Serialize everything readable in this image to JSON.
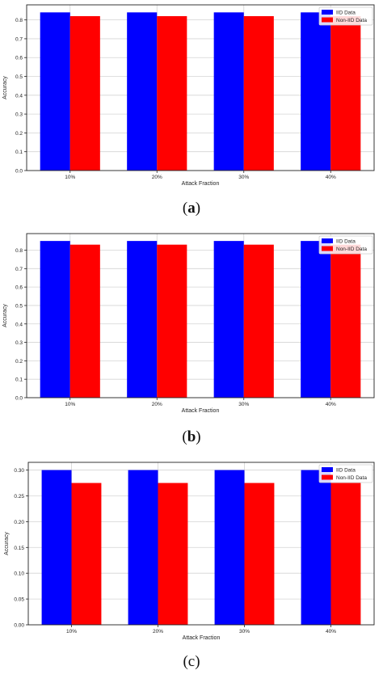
{
  "chart_data": [
    {
      "type": "bar",
      "panel_label": "a",
      "categories": [
        "10%",
        "20%",
        "30%",
        "40%"
      ],
      "series": [
        {
          "name": "IID Data",
          "color": "#0000ff",
          "values": [
            0.84,
            0.84,
            0.84,
            0.84
          ]
        },
        {
          "name": "Non-IID Data",
          "color": "#ff0000",
          "values": [
            0.82,
            0.82,
            0.82,
            0.82
          ]
        }
      ],
      "xlabel": "Attack Fraction",
      "ylabel": "Accuracy",
      "ylim": [
        0,
        0.88
      ],
      "yticks": [
        "0.0",
        "0.1",
        "0.2",
        "0.3",
        "0.4",
        "0.5",
        "0.6",
        "0.7",
        "0.8"
      ],
      "ytick_values": [
        0,
        0.1,
        0.2,
        0.3,
        0.4,
        0.5,
        0.6,
        0.7,
        0.8
      ],
      "grid": true,
      "legend_position": "top-right"
    },
    {
      "type": "bar",
      "panel_label": "b",
      "categories": [
        "10%",
        "20%",
        "30%",
        "40%"
      ],
      "series": [
        {
          "name": "IID Data",
          "color": "#0000ff",
          "values": [
            0.85,
            0.85,
            0.85,
            0.85
          ]
        },
        {
          "name": "Non-IID Data",
          "color": "#ff0000",
          "values": [
            0.83,
            0.83,
            0.83,
            0.83
          ]
        }
      ],
      "xlabel": "Attack Fraction",
      "ylabel": "Accuracy",
      "ylim": [
        0,
        0.89
      ],
      "yticks": [
        "0.0",
        "0.1",
        "0.2",
        "0.3",
        "0.4",
        "0.5",
        "0.6",
        "0.7",
        "0.8"
      ],
      "ytick_values": [
        0,
        0.1,
        0.2,
        0.3,
        0.4,
        0.5,
        0.6,
        0.7,
        0.8
      ],
      "grid": true,
      "legend_position": "top-right"
    },
    {
      "type": "bar",
      "panel_label": "c",
      "categories": [
        "10%",
        "20%",
        "30%",
        "40%"
      ],
      "series": [
        {
          "name": "IID Data",
          "color": "#0000ff",
          "values": [
            0.3,
            0.3,
            0.3,
            0.3
          ]
        },
        {
          "name": "Non-IID Data",
          "color": "#ff0000",
          "values": [
            0.275,
            0.275,
            0.275,
            0.275
          ]
        }
      ],
      "xlabel": "Attack Fraction",
      "ylabel": "Accuracy",
      "ylim": [
        0,
        0.315
      ],
      "yticks": [
        "0.00",
        "0.05",
        "0.10",
        "0.15",
        "0.20",
        "0.25",
        "0.30"
      ],
      "ytick_values": [
        0,
        0.05,
        0.1,
        0.15,
        0.2,
        0.25,
        0.3
      ],
      "grid": true,
      "legend_position": "top-right"
    }
  ]
}
